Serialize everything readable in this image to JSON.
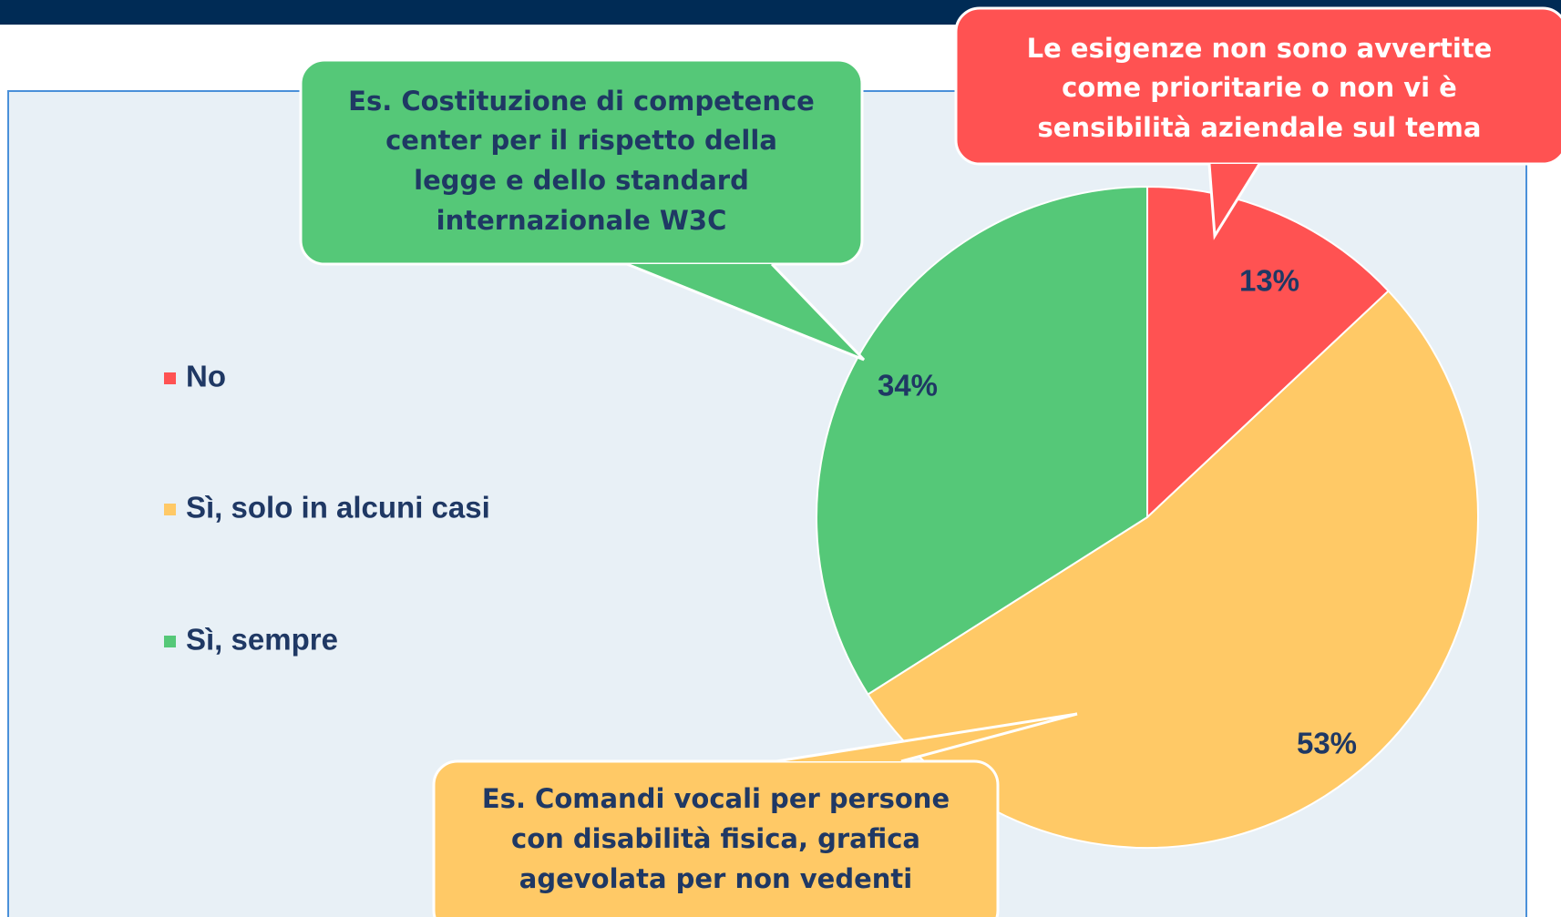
{
  "chart_data": {
    "type": "pie",
    "categories": [
      "No",
      "Sì, solo in alcuni casi",
      "Sì, sempre"
    ],
    "values": [
      13,
      53,
      34
    ],
    "value_labels": [
      "13%",
      "53%",
      "34%"
    ],
    "colors": [
      "#ff5252",
      "#ffc966",
      "#55c878"
    ],
    "annotations": [
      {
        "lines": [
          "Es. Costituzione di competence",
          "center per il rispetto della",
          "legge e dello standard",
          "internazionale W3C"
        ],
        "color": "#55c878"
      },
      {
        "lines": [
          "Le esigenze non sono avvertite",
          "come prioritarie o non vi è",
          "sensibilità aziendale sul tema"
        ],
        "color": "#ff5252"
      },
      {
        "lines": [
          "Es. Comandi vocali per persone",
          "con disabilità fisica, grafica",
          "agevolata per non vedenti"
        ],
        "color": "#ffc966"
      }
    ]
  }
}
